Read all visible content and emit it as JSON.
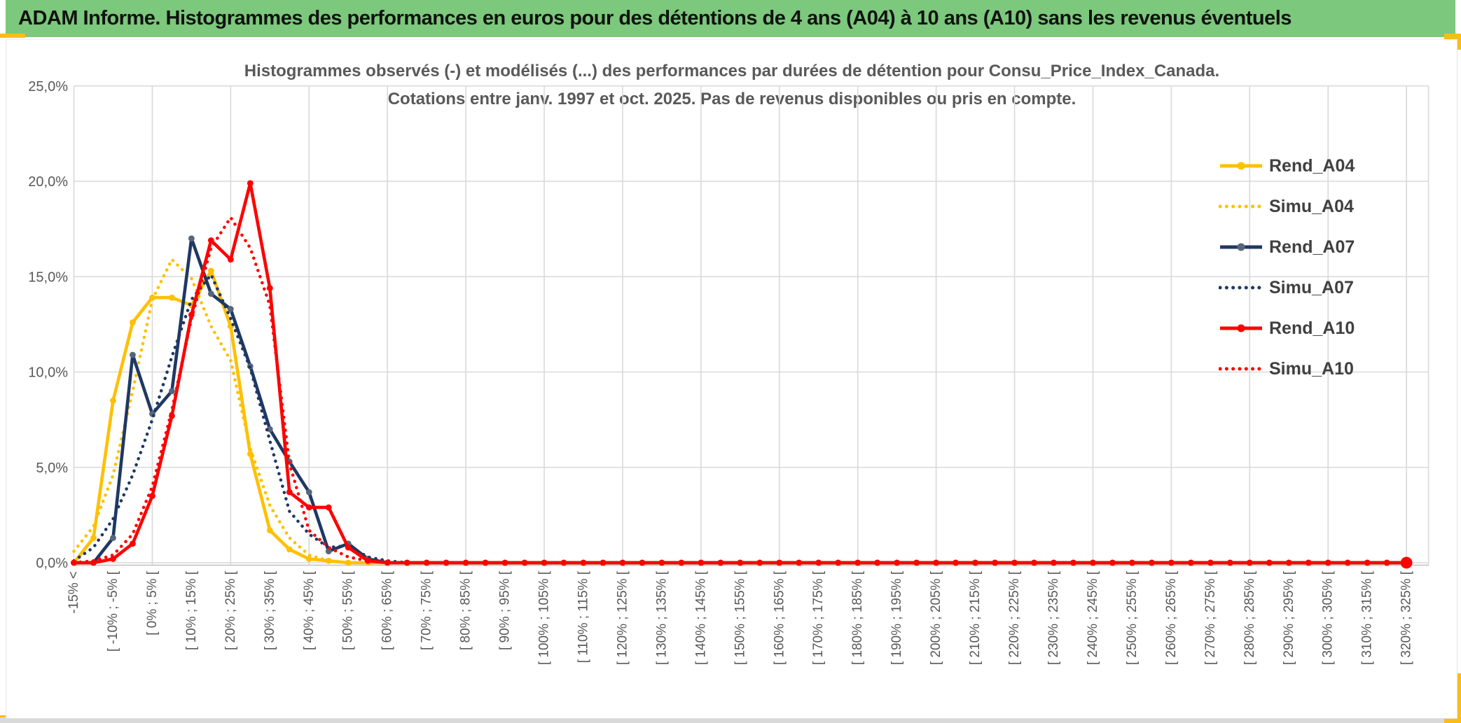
{
  "header": {
    "title": "ADAM Informe. Histogrammes des performances en euros pour des détentions de 4 ans (A04) à 10 ans (A10) sans les revenus éventuels",
    "bar_color": "#7CC87C",
    "accent_color": "#FABD17"
  },
  "chart_data": {
    "type": "line",
    "title_line1": "Histogrammes observés (-) et modélisés (...) des performances par durées de détention pour Consu_Price_Index_Canada.",
    "title_line2": "Cotations entre janv. 1997 et oct. 2025. Pas de revenus disponibles ou pris en compte.",
    "grid": true,
    "legend_position": "right",
    "y_axis": {
      "unit": "%",
      "min": 0,
      "max": 25,
      "tick_labels": [
        "25,0%",
        "20,0%",
        "15,0%",
        "10,0%",
        "5,0%",
        "0,0%"
      ],
      "tick_values": [
        25,
        20,
        15,
        10,
        5,
        0
      ]
    },
    "x_axis": {
      "n_bins": 69,
      "label_every_n_bins": 2,
      "labels": [
        "-15% <",
        "[ -10% ; -5% [",
        "[ 0% ; 5% [",
        "[ 10% ; 15% [",
        "[ 20% ; 25% [",
        "[ 30% ; 35% [",
        "[ 40% ; 45% [",
        "[ 50% ; 55% [",
        "[ 60% ; 65% [",
        "[ 70% ; 75% [",
        "[ 80% ; 85% [",
        "[ 90% ; 95% [",
        "[ 100% ; 105% [",
        "[ 110% ; 115% [",
        "[ 120% ; 125% [",
        "[ 130% ; 135% [",
        "[ 140% ; 145% [",
        "[ 150% ; 155% [",
        "[ 160% ; 165% [",
        "[ 170% ; 175% [",
        "[ 180% ; 185% [",
        "[ 190% ; 195% [",
        "[ 200% ; 205% [",
        "[ 210% ; 215% [",
        "[ 220% ; 225% [",
        "[ 230% ; 235% [",
        "[ 240% ; 245% [",
        "[ 250% ; 255% [",
        "[ 260% ; 265% [",
        "[ 270% ; 275% [",
        "[ 280% ; 285% [",
        "[ 290% ; 295% [",
        "[ 300% ; 305% [",
        "[ 310% ; 315% [",
        "[ 320% ; 325% ["
      ]
    },
    "series": [
      {
        "name": "Rend_A04",
        "style": "solid",
        "color": "#FFC000",
        "marker_color": "#FFC000",
        "values": [
          0,
          1.3,
          8.5,
          12.6,
          13.9,
          13.9,
          13.5,
          15.3,
          12.4,
          5.7,
          1.7,
          0.7,
          0.2,
          0.1
        ]
      },
      {
        "name": "Simu_A04",
        "style": "dotted",
        "color": "#FFC000",
        "values": [
          0.6,
          1.9,
          4.6,
          9.0,
          13.8,
          15.9,
          14.9,
          12.4,
          10.6,
          6.0,
          3.0,
          1.3,
          0.4,
          0.1
        ]
      },
      {
        "name": "Rend_A07",
        "style": "solid",
        "color": "#1F3864",
        "marker_color": "#5A6579",
        "values": [
          0,
          0,
          1.3,
          10.9,
          7.8,
          9.0,
          17.0,
          14.1,
          13.3,
          10.3,
          7.0,
          5.3,
          3.7,
          0.6,
          1.0,
          0.2
        ]
      },
      {
        "name": "Simu_A07",
        "style": "dotted",
        "color": "#1F3864",
        "values": [
          0.1,
          0.8,
          2.3,
          4.6,
          7.5,
          10.8,
          13.8,
          15.1,
          12.8,
          10.2,
          6.4,
          2.7,
          1.5,
          0.8,
          0.9,
          0.3,
          0.1
        ]
      },
      {
        "name": "Rend_A10",
        "style": "solid",
        "color": "#FF0000",
        "marker_color": "#FF0000",
        "end_dot": true,
        "values": [
          0,
          0,
          0.2,
          1.0,
          3.5,
          7.7,
          13.0,
          16.9,
          15.9,
          19.9,
          14.4,
          3.7,
          2.9,
          2.9,
          0.8,
          0.1
        ]
      },
      {
        "name": "Simu_A10",
        "style": "dotted",
        "color": "#FF0000",
        "values": [
          0,
          0.1,
          0.4,
          1.5,
          4.0,
          8.0,
          12.8,
          16.5,
          18.1,
          16.5,
          13.5,
          5.2,
          1.7,
          0.8,
          0.3,
          0.1
        ]
      }
    ],
    "note": "values are percentages per 5%-wide performance bin; all bins after the listed head values are 0",
    "grid_color": "#d9d9d9",
    "axis_text_color": "#595959"
  }
}
